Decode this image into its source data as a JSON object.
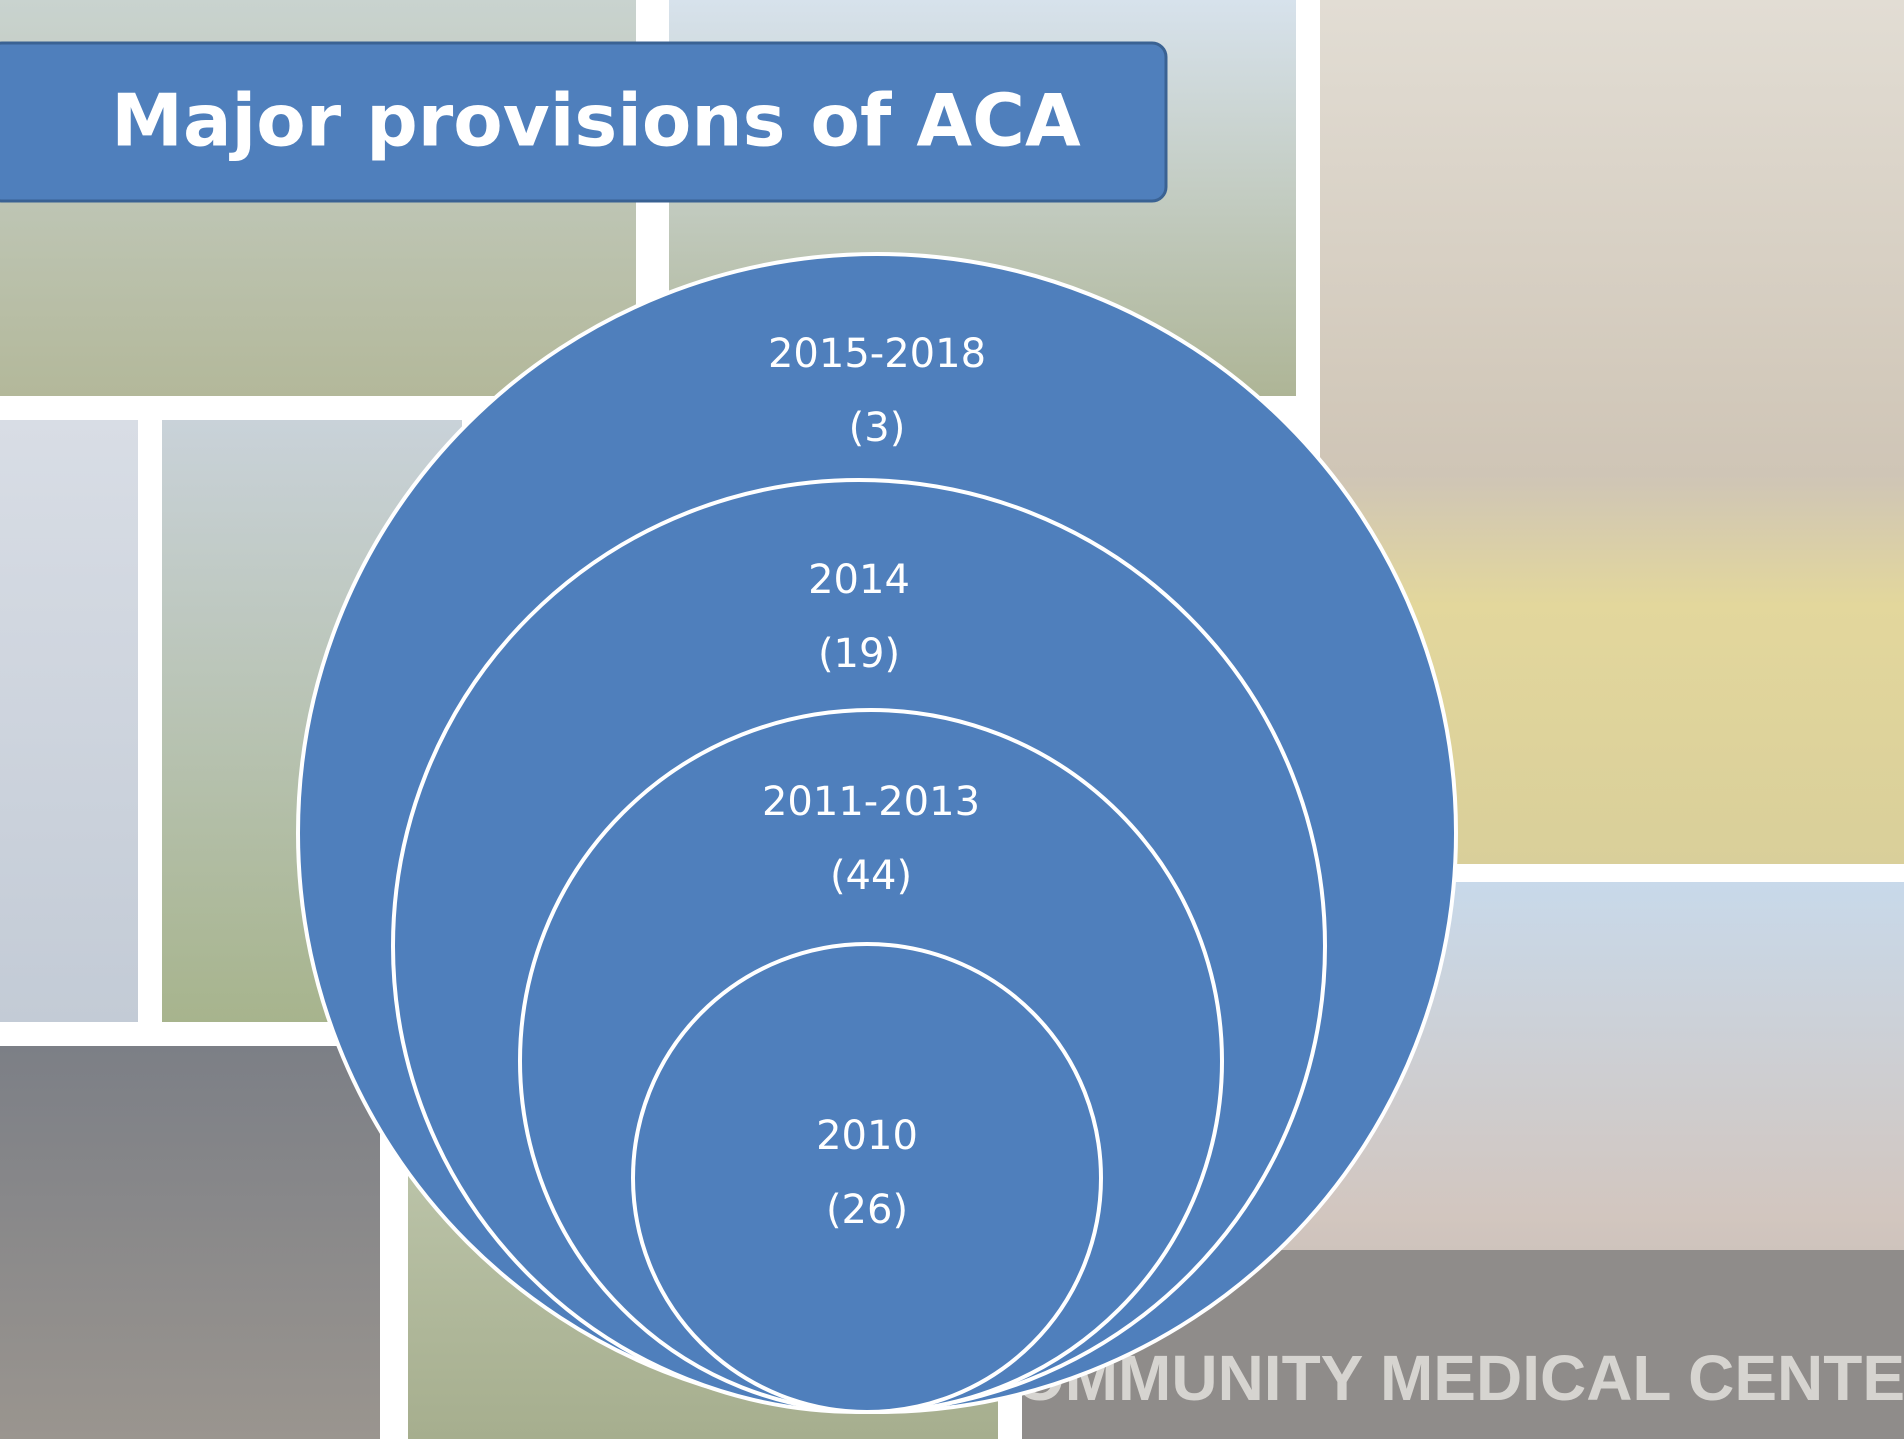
{
  "header": {
    "title": "Major provisions of ACA"
  },
  "nodes": [
    {
      "period": "2015-2018",
      "count": "(3)"
    },
    {
      "period": "2014",
      "count": "(19)"
    },
    {
      "period": "2011-2013",
      "count": "(44)"
    },
    {
      "period": "2010",
      "count": "(26)"
    }
  ],
  "background": {
    "sign": "COMMUNITY MEDICAL CENTER"
  }
}
